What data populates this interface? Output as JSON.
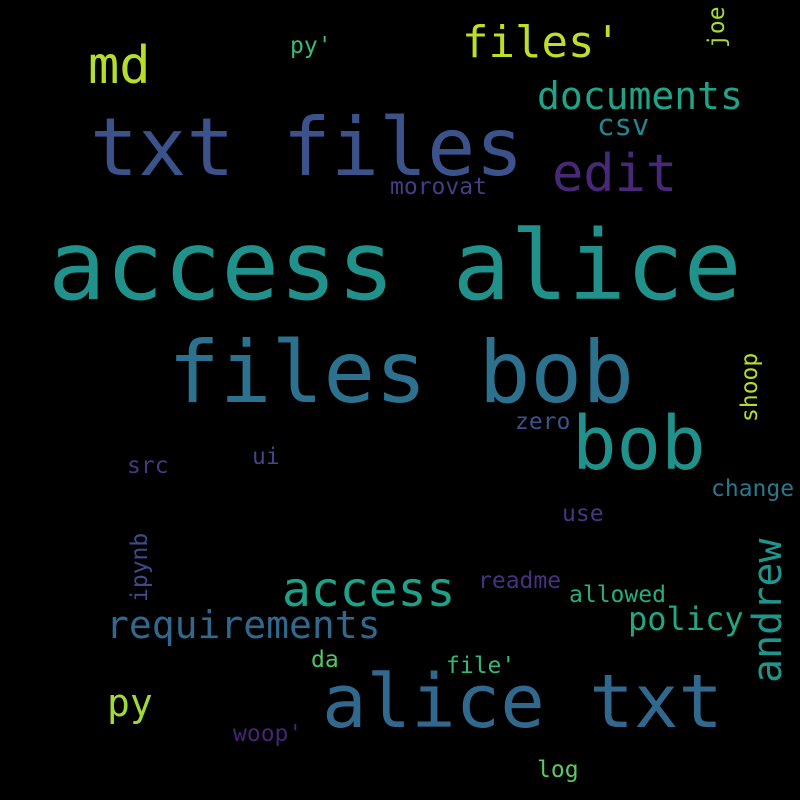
{
  "words": {
    "access_alice": {
      "text": "access alice",
      "color": "#21918c"
    },
    "files_bob": {
      "text": "files bob",
      "color": "#2c728e"
    },
    "txt_files": {
      "text": "txt files",
      "color": "#3b528b"
    },
    "alice_txt": {
      "text": "alice txt",
      "color": "#31688e"
    },
    "bob": {
      "text": "bob",
      "color": "#21918c"
    },
    "edit": {
      "text": "edit",
      "color": "#482878"
    },
    "md": {
      "text": "md",
      "color": "#b5de2b"
    },
    "files_q": {
      "text": "files'",
      "color": "#bddf26"
    },
    "documents": {
      "text": "documents",
      "color": "#20a386"
    },
    "csv": {
      "text": "csv",
      "color": "#25858e"
    },
    "morovat": {
      "text": "morovat",
      "color": "#433e85"
    },
    "py_q": {
      "text": "py'",
      "color": "#3aba76"
    },
    "joe": {
      "text": "joe",
      "color": "#a5db36"
    },
    "access": {
      "text": "access",
      "color": "#1fa188"
    },
    "requirements": {
      "text": "requirements",
      "color": "#31688e"
    },
    "andrew": {
      "text": "andrew",
      "color": "#1f968b"
    },
    "policy": {
      "text": "policy",
      "color": "#22a785"
    },
    "py": {
      "text": "py",
      "color": "#a0da39"
    },
    "shoop": {
      "text": "shoop",
      "color": "#b5de2b"
    },
    "zero": {
      "text": "zero",
      "color": "#3b528b"
    },
    "src": {
      "text": "src",
      "color": "#443983"
    },
    "ui": {
      "text": "ui",
      "color": "#414487"
    },
    "change": {
      "text": "change",
      "color": "#2a788e"
    },
    "use": {
      "text": "use",
      "color": "#453781"
    },
    "ipynb": {
      "text": "ipynb",
      "color": "#3e4a89"
    },
    "readme": {
      "text": "readme",
      "color": "#46337f"
    },
    "allowed": {
      "text": "allowed",
      "color": "#27ad81"
    },
    "da": {
      "text": "da",
      "color": "#52c569"
    },
    "file_q": {
      "text": "file'",
      "color": "#35b779"
    },
    "woop_q": {
      "text": "woop'",
      "color": "#482475"
    },
    "log": {
      "text": "log",
      "color": "#5ec962"
    }
  }
}
